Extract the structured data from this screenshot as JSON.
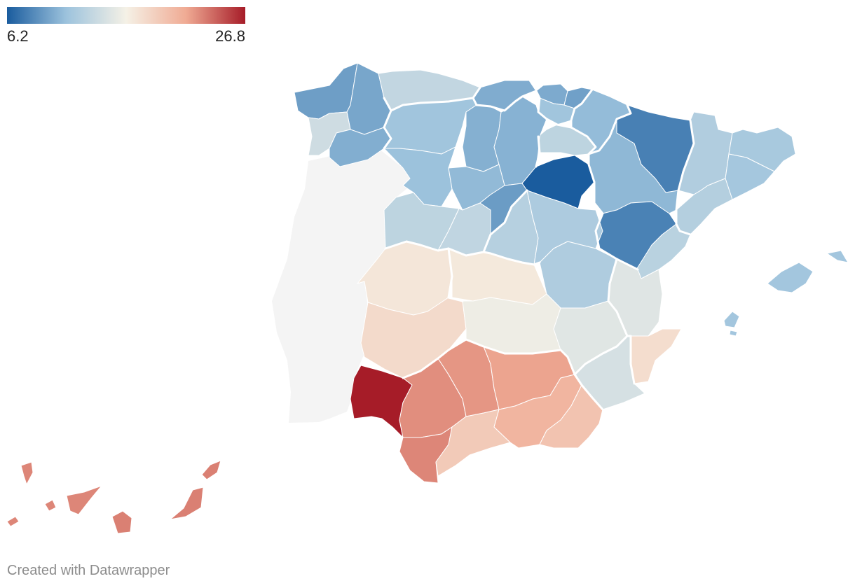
{
  "legend": {
    "min_label": "6.2",
    "max_label": "26.8",
    "min": 6.2,
    "max": 26.8,
    "colors": [
      "#1a5c9e",
      "#9dc3dd",
      "#f5f1e6",
      "#f0ab94",
      "#a61c28"
    ]
  },
  "footer": {
    "credit": "Created with Datawrapper"
  },
  "colors": {
    "portugal": "#f4f4f4",
    "border": "#ffffff",
    "credit": "#8c8c8c"
  },
  "chart_data": {
    "type": "choropleth",
    "title": "",
    "scale": {
      "min": 6.2,
      "max": 26.8
    },
    "regions": [
      {
        "name": "A Coruña",
        "value": 9.5
      },
      {
        "name": "Lugo",
        "value": 9.9
      },
      {
        "name": "Pontevedra",
        "value": 14.2
      },
      {
        "name": "Ourense",
        "value": 10.3
      },
      {
        "name": "Asturias",
        "value": 13.5
      },
      {
        "name": "Cantabria",
        "value": 10.2
      },
      {
        "name": "Vizcaya",
        "value": 10.1
      },
      {
        "name": "Guipúzcoa",
        "value": 9.6
      },
      {
        "name": "Álava",
        "value": 11.6
      },
      {
        "name": "Navarra",
        "value": 11.0
      },
      {
        "name": "La Rioja",
        "value": 13.2
      },
      {
        "name": "León",
        "value": 11.6
      },
      {
        "name": "Palencia",
        "value": 10.4
      },
      {
        "name": "Burgos",
        "value": 10.5
      },
      {
        "name": "Zamora",
        "value": 11.3
      },
      {
        "name": "Valladolid",
        "value": 10.9
      },
      {
        "name": "Soria",
        "value": 6.2
      },
      {
        "name": "Salamanca",
        "value": 13.2
      },
      {
        "name": "Ávila",
        "value": 13.4
      },
      {
        "name": "Segovia",
        "value": 9.4
      },
      {
        "name": "Huesca",
        "value": 8.0
      },
      {
        "name": "Zaragoza",
        "value": 10.8
      },
      {
        "name": "Teruel",
        "value": 8.1
      },
      {
        "name": "Lleida",
        "value": 12.5
      },
      {
        "name": "Girona",
        "value": 12.0
      },
      {
        "name": "Barcelona",
        "value": 11.8
      },
      {
        "name": "Tarragona",
        "value": 12.7
      },
      {
        "name": "Madrid",
        "value": 12.8
      },
      {
        "name": "Guadalajara",
        "value": 12.3
      },
      {
        "name": "Cuenca",
        "value": 12.4
      },
      {
        "name": "Toledo",
        "value": 17.1
      },
      {
        "name": "Ciudad Real",
        "value": 16.1
      },
      {
        "name": "Albacete",
        "value": 15.3
      },
      {
        "name": "Cáceres",
        "value": 17.3
      },
      {
        "name": "Badajoz",
        "value": 18.2
      },
      {
        "name": "Castellón",
        "value": 13.0
      },
      {
        "name": "Valencia",
        "value": 15.2
      },
      {
        "name": "Alicante",
        "value": 18.0
      },
      {
        "name": "Murcia",
        "value": 14.6
      },
      {
        "name": "Huelva",
        "value": 26.8
      },
      {
        "name": "Sevilla",
        "value": 22.7
      },
      {
        "name": "Córdoba",
        "value": 22.4
      },
      {
        "name": "Jaén",
        "value": 21.9
      },
      {
        "name": "Cádiz",
        "value": 23.0
      },
      {
        "name": "Málaga",
        "value": 19.4
      },
      {
        "name": "Granada",
        "value": 20.9
      },
      {
        "name": "Almería",
        "value": 19.9
      },
      {
        "name": "Islas Baleares",
        "value": 11.7
      },
      {
        "name": "Santa Cruz de Tenerife",
        "value": 23.0
      },
      {
        "name": "Las Palmas",
        "value": 23.2
      }
    ]
  }
}
